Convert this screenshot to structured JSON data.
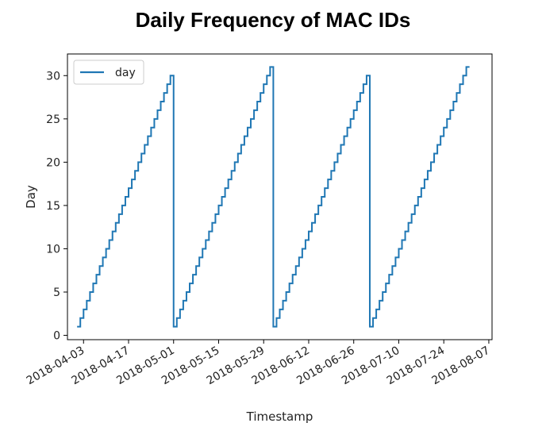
{
  "chart_data": {
    "type": "line",
    "title": "Daily Frequency of MAC IDs",
    "xlabel": "Timestamp",
    "ylabel": "Day",
    "x_ticks": [
      "2018-04-03",
      "2018-04-17",
      "2018-05-01",
      "2018-05-15",
      "2018-05-29",
      "2018-06-12",
      "2018-06-26",
      "2018-07-10",
      "2018-07-24",
      "2018-08-07"
    ],
    "y_ticks": [
      0,
      5,
      10,
      15,
      20,
      25,
      30
    ],
    "ylim": [
      -0.5,
      32.5
    ],
    "xlim": [
      "2018-03-29",
      "2018-08-08"
    ],
    "legend": {
      "position": "top-left",
      "entries": [
        "day"
      ]
    },
    "grid": false,
    "series": [
      {
        "name": "day",
        "color": "#1f77b4",
        "step": "post",
        "x_range": [
          "2018-04-01",
          "2018-08-01"
        ],
        "description_values": "day of month for each date from 2018-04-01 to 2018-07-31"
      }
    ]
  }
}
